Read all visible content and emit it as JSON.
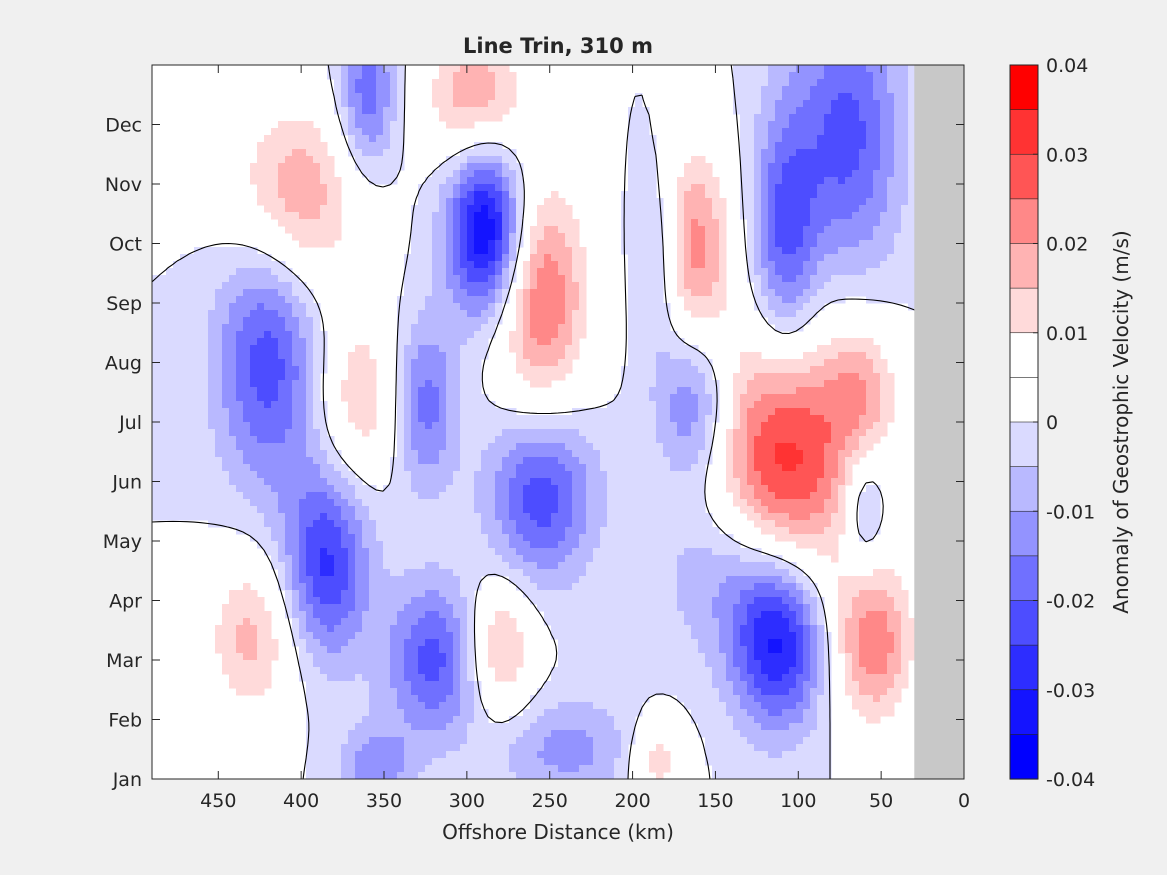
{
  "chart_data": {
    "type": "heatmap",
    "title": "Line Trin, 310 m",
    "xlabel": "Offshore Distance (km)",
    "ylabel": "",
    "xlim": [
      490,
      0
    ],
    "x_reversed": true,
    "x_ticks": [
      450,
      400,
      350,
      300,
      250,
      200,
      150,
      100,
      50,
      0
    ],
    "y_ticks": [
      "Jan",
      "Feb",
      "Mar",
      "Apr",
      "May",
      "Jun",
      "Jul",
      "Aug",
      "Sep",
      "Oct",
      "Nov",
      "Dec"
    ],
    "ylim_months": [
      1,
      13
    ],
    "no_data_region_km": [
      30,
      0
    ],
    "colorbar": {
      "label": "Anomaly of Geostrophic Velocity (m/s)",
      "range": [
        -0.04,
        0.04
      ],
      "levels": 16,
      "tick_values": [
        0.04,
        0.03,
        0.02,
        0.01,
        0,
        -0.01,
        -0.02,
        -0.03,
        -0.04
      ],
      "tick_labels": [
        "0.04",
        "0.03",
        "0.02",
        "0.01",
        "0",
        "-0.01",
        "-0.02",
        "-0.03",
        "-0.04"
      ],
      "zero_contour": true
    },
    "features": [
      {
        "x": 108,
        "y": 6.4,
        "v": 0.034,
        "sx": 30,
        "sy": 1.6
      },
      {
        "x": 255,
        "y": 9.1,
        "v": 0.026,
        "sx": 20,
        "sy": 1.4
      },
      {
        "x": 288,
        "y": 10.2,
        "v": -0.038,
        "sx": 16,
        "sy": 1.0
      },
      {
        "x": 112,
        "y": 3.3,
        "v": -0.032,
        "sx": 20,
        "sy": 1.0
      },
      {
        "x": 420,
        "y": 8.2,
        "v": -0.024,
        "sx": 22,
        "sy": 1.6
      },
      {
        "x": 385,
        "y": 4.6,
        "v": -0.026,
        "sx": 18,
        "sy": 1.1
      },
      {
        "x": 405,
        "y": 10.7,
        "v": 0.022,
        "sx": 28,
        "sy": 1.2
      },
      {
        "x": 255,
        "y": 5.8,
        "v": -0.024,
        "sx": 22,
        "sy": 1.0
      },
      {
        "x": 325,
        "y": 7.3,
        "v": -0.018,
        "sx": 13,
        "sy": 1.0
      },
      {
        "x": 320,
        "y": 3.0,
        "v": -0.022,
        "sx": 20,
        "sy": 0.9
      },
      {
        "x": 280,
        "y": 3.2,
        "v": 0.018,
        "sx": 14,
        "sy": 0.8
      },
      {
        "x": 430,
        "y": 3.4,
        "v": 0.017,
        "sx": 20,
        "sy": 1.0
      },
      {
        "x": 365,
        "y": 7.4,
        "v": 0.015,
        "sx": 18,
        "sy": 1.0
      },
      {
        "x": 163,
        "y": 10.0,
        "v": 0.022,
        "sx": 16,
        "sy": 1.2
      },
      {
        "x": 163,
        "y": 7.3,
        "v": -0.018,
        "sx": 16,
        "sy": 0.9
      },
      {
        "x": 108,
        "y": 10.0,
        "v": -0.022,
        "sx": 14,
        "sy": 1.6
      },
      {
        "x": 70,
        "y": 11.8,
        "v": -0.022,
        "sx": 22,
        "sy": 1.6
      },
      {
        "x": 55,
        "y": 3.3,
        "v": 0.024,
        "sx": 18,
        "sy": 1.0
      },
      {
        "x": 295,
        "y": 12.5,
        "v": 0.02,
        "sx": 22,
        "sy": 0.8
      },
      {
        "x": 360,
        "y": 12.5,
        "v": -0.02,
        "sx": 12,
        "sy": 0.9
      },
      {
        "x": 355,
        "y": 1.2,
        "v": -0.014,
        "sx": 15,
        "sy": 0.5
      },
      {
        "x": 185,
        "y": 1.3,
        "v": 0.014,
        "sx": 12,
        "sy": 0.5
      },
      {
        "x": 60,
        "y": 5.5,
        "v": -0.014,
        "sx": 9,
        "sy": 0.8
      },
      {
        "x": 60,
        "y": 7.5,
        "v": 0.015,
        "sx": 15,
        "sy": 0.8
      },
      {
        "x": 185,
        "y": 9.8,
        "v": -0.012,
        "sx": 10,
        "sy": 1.1
      },
      {
        "x": 240,
        "y": 1.5,
        "v": -0.012,
        "sx": 30,
        "sy": 0.6
      },
      {
        "x": 140,
        "y": 4.5,
        "v": -0.012,
        "sx": 30,
        "sy": 1.0
      }
    ]
  }
}
